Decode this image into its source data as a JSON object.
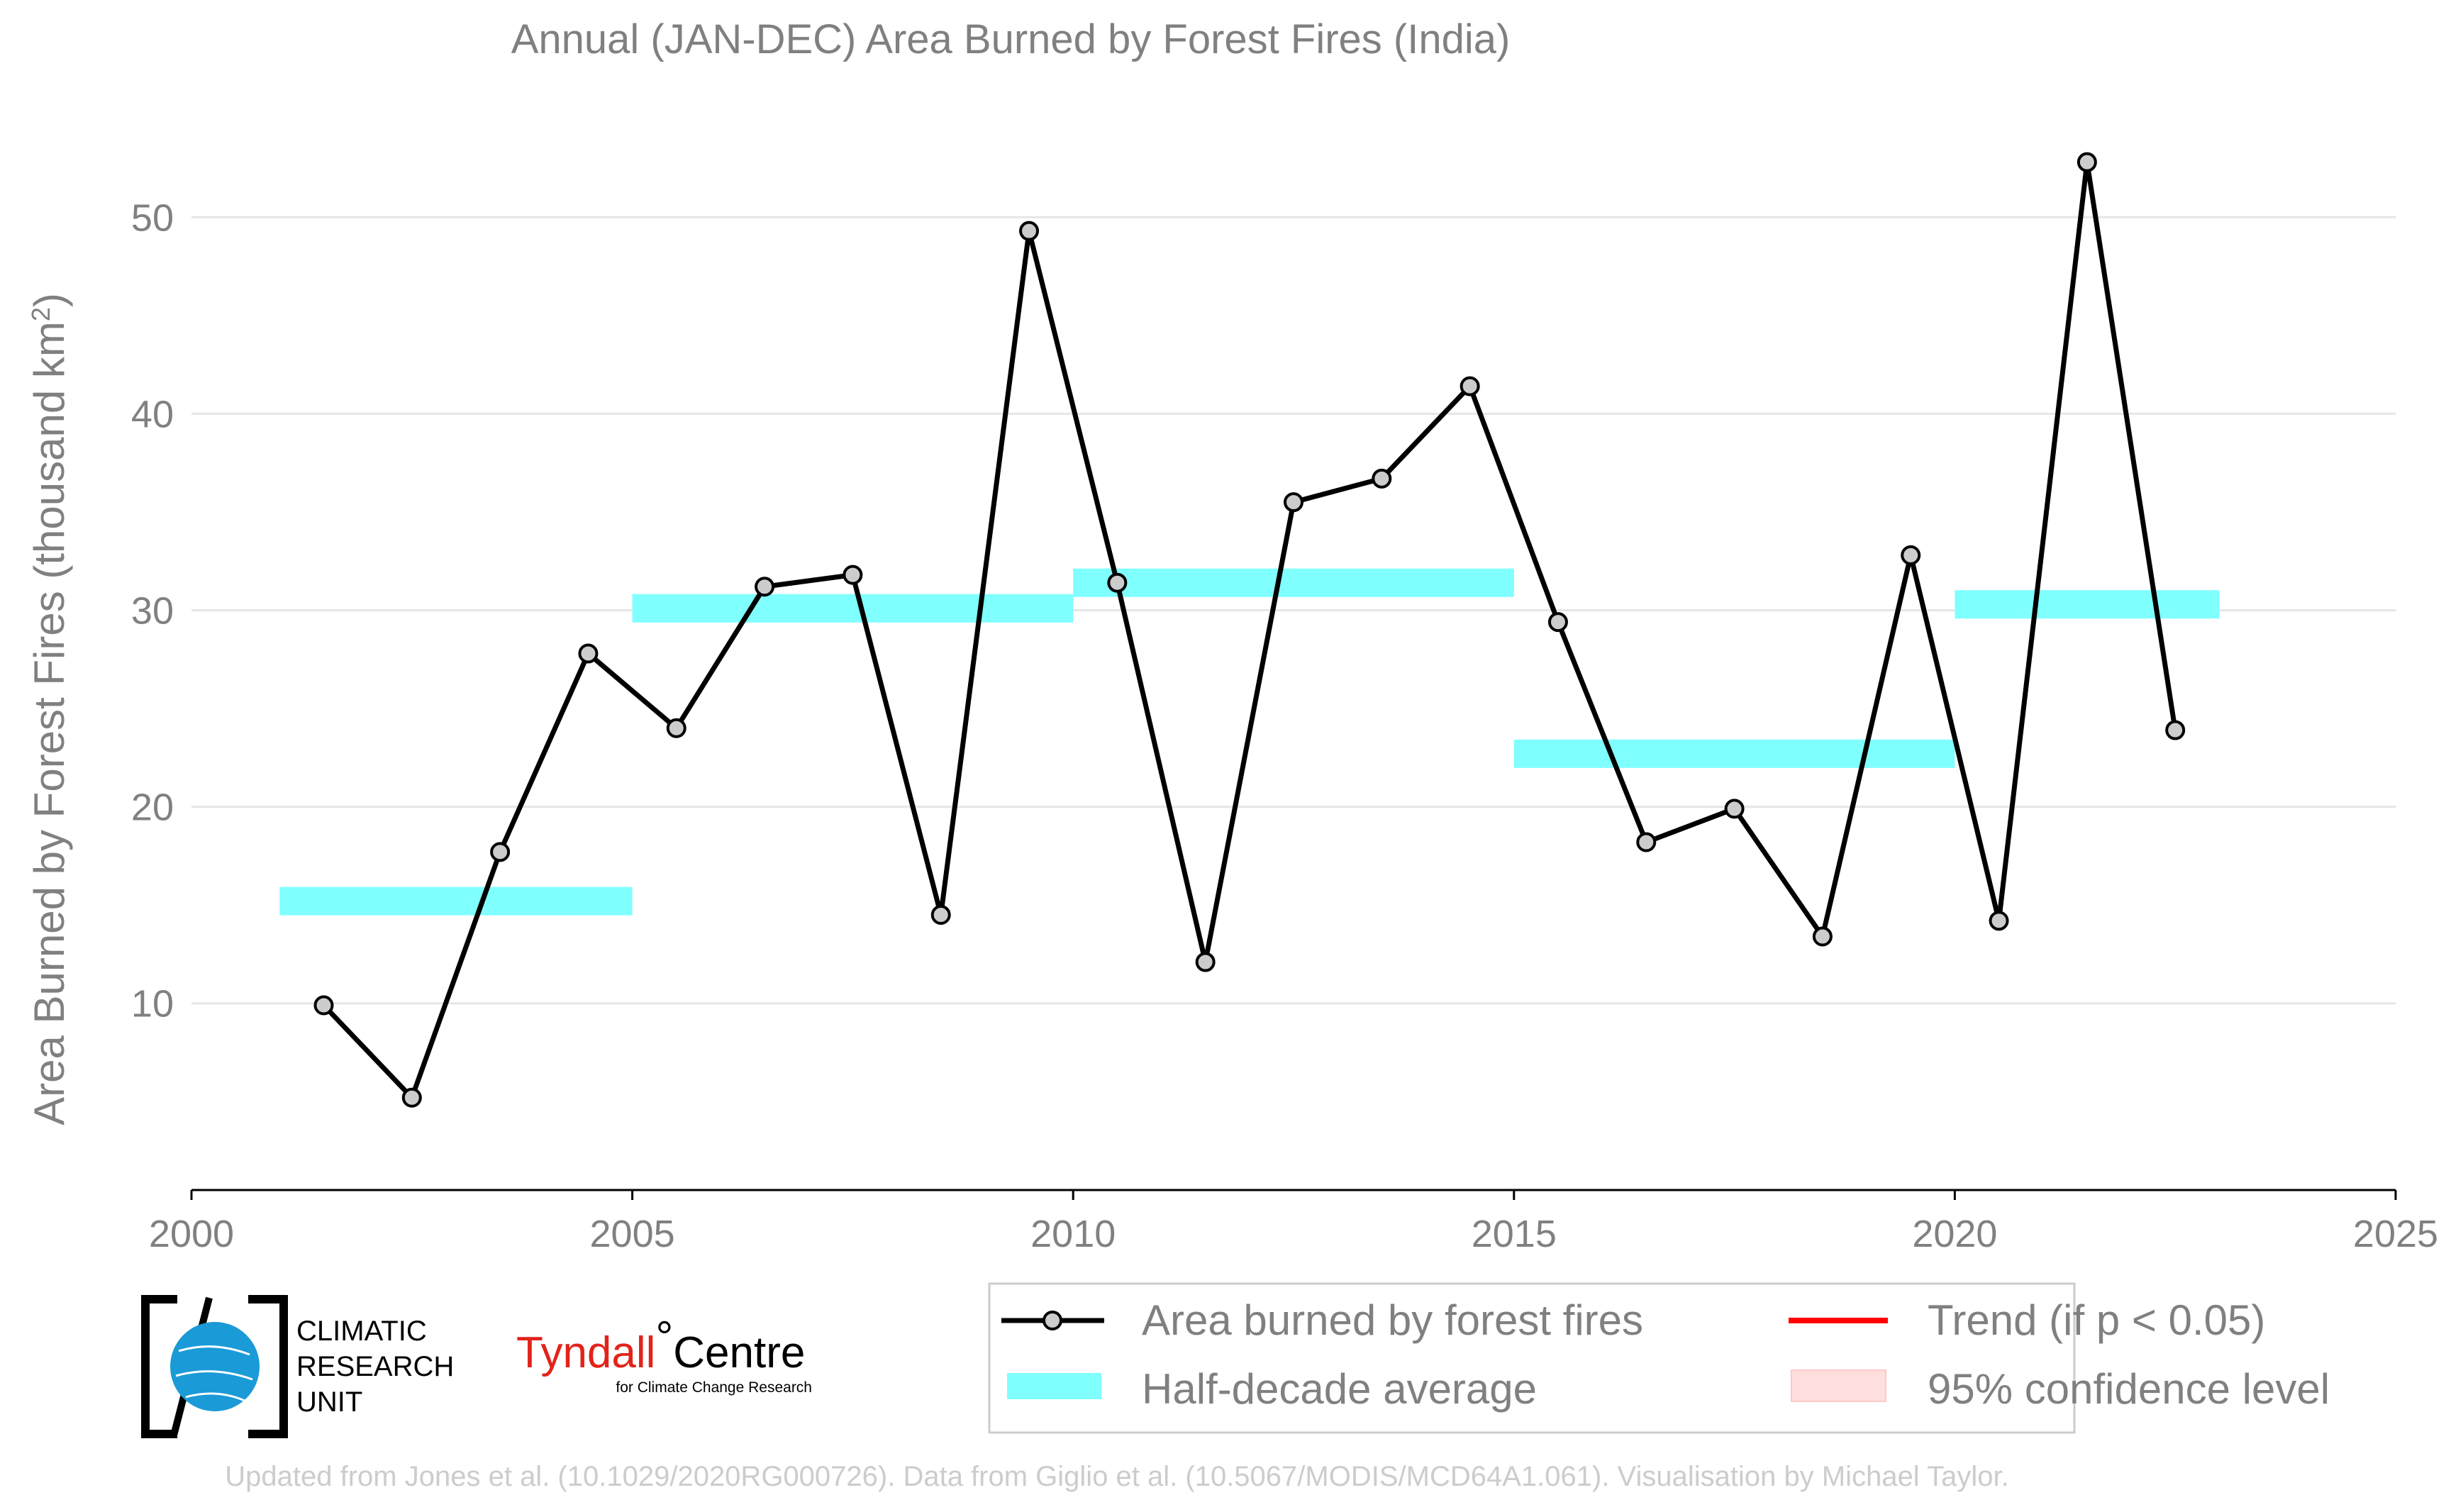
{
  "chart_data": {
    "type": "line",
    "title": "Annual (JAN-DEC) Area Burned by Forest Fires (India)",
    "ylabel_main": "Area Burned by Forest Fires (thousand km",
    "ylabel_sup": "2",
    "ylabel_tail": ")",
    "xlim": [
      2000,
      2025
    ],
    "ylim": [
      0.5,
      56
    ],
    "xticks": [
      2000,
      2005,
      2010,
      2015,
      2020,
      2025
    ],
    "yticks": [
      10,
      20,
      30,
      40,
      50
    ],
    "grid": true,
    "series": [
      {
        "name": "Area burned by forest fires",
        "color": "#000000",
        "marker_fill": "#cccccc",
        "x": [
          2001.5,
          2002.5,
          2003.5,
          2004.5,
          2005.5,
          2006.5,
          2007.5,
          2008.5,
          2009.5,
          2010.5,
          2011.5,
          2012.5,
          2013.5,
          2014.5,
          2015.5,
          2016.5,
          2017.5,
          2018.5,
          2019.5,
          2020.5,
          2021.5,
          2022.5
        ],
        "y": [
          9.9,
          5.2,
          17.7,
          27.8,
          24.0,
          31.2,
          31.8,
          14.5,
          49.3,
          31.4,
          12.1,
          35.5,
          36.7,
          41.4,
          29.4,
          18.2,
          19.9,
          13.4,
          32.8,
          14.2,
          52.8,
          23.9
        ]
      }
    ],
    "half_decade_average": {
      "name": "Half-decade average",
      "color": "#80ffff",
      "segments": [
        {
          "x0": 2001,
          "x1": 2005,
          "y": 15.2
        },
        {
          "x0": 2005,
          "x1": 2010,
          "y": 30.1
        },
        {
          "x0": 2010,
          "x1": 2015,
          "y": 31.4
        },
        {
          "x0": 2015,
          "x1": 2020,
          "y": 22.7
        },
        {
          "x0": 2020,
          "x1": 2023,
          "y": 30.3
        }
      ]
    },
    "legend": {
      "placement": "bottom-right",
      "entries": [
        {
          "label": "Area burned by forest fires",
          "kind": "line-marker",
          "color": "#000000"
        },
        {
          "label": "Trend (if p < 0.05)",
          "kind": "line",
          "color": "#ff0000"
        },
        {
          "label": "Half-decade average",
          "kind": "band",
          "color": "#80ffff"
        },
        {
          "label": "95% confidence level",
          "kind": "patch",
          "color": "#ffdede"
        }
      ]
    }
  },
  "logos": {
    "cru": {
      "line1": "CLIMATIC",
      "line2": "RESEARCH",
      "line3": "UNIT",
      "accent": "#1a9ad6"
    },
    "tyndall": {
      "main_red": "Tyndall",
      "degree": "°",
      "main_black": "Centre",
      "sub": "for Climate Change Research"
    }
  },
  "footer": "Updated from Jones et al. (10.1029/2020RG000726). Data from Giglio et al. (10.5067/MODIS/MCD64A1.061). Visualisation by Michael Taylor."
}
